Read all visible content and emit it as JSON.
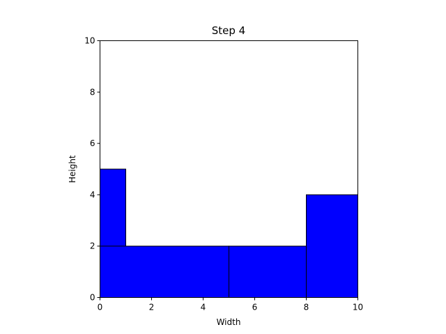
{
  "chart_data": {
    "type": "bar",
    "title": "Step 4",
    "xlabel": "Width",
    "ylabel": "Height",
    "xlim": [
      0,
      10
    ],
    "ylim": [
      0,
      10
    ],
    "xticks": [
      "0",
      "2",
      "4",
      "6",
      "8",
      "10"
    ],
    "yticks": [
      "0",
      "2",
      "4",
      "6",
      "8",
      "10"
    ],
    "grid": false,
    "fill_color": "#0000ff",
    "edge_color": "#000000",
    "rectangles": [
      {
        "x": 0,
        "y": 0,
        "width": 1,
        "height": 5
      },
      {
        "x": 0,
        "y": 0,
        "width": 5,
        "height": 2
      },
      {
        "x": 5,
        "y": 0,
        "width": 3,
        "height": 2
      },
      {
        "x": 8,
        "y": 0,
        "width": 2,
        "height": 4
      }
    ]
  }
}
